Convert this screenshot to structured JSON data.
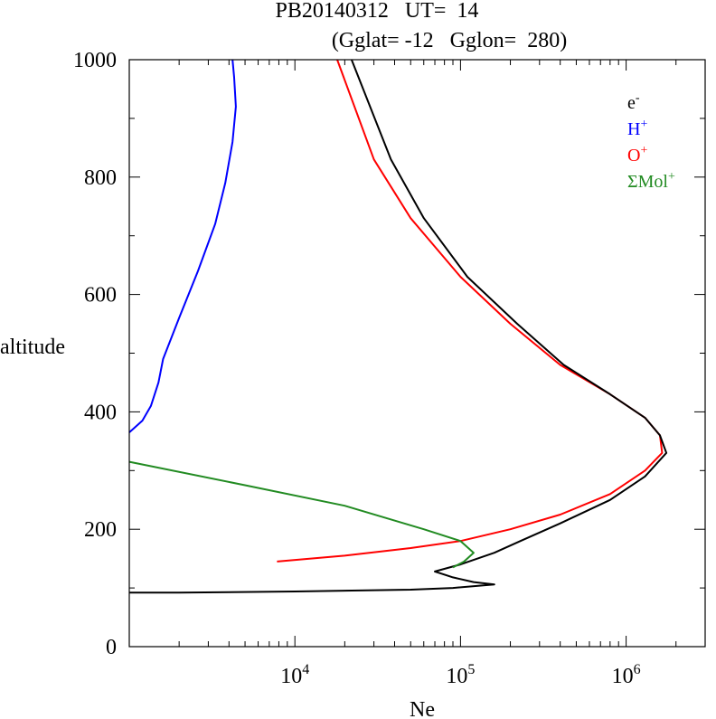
{
  "chart_data": {
    "type": "line",
    "title_line1": "PB20140312   UT=  14",
    "title_line2": "(Gglat= -12   Gglon=  280)",
    "xlabel": "Ne",
    "ylabel": "altitude",
    "xscale": "log",
    "xlim": [
      1000,
      3000000
    ],
    "ylim": [
      0,
      1000
    ],
    "yticks": [
      0,
      200,
      400,
      600,
      800,
      1000
    ],
    "xticks": [
      {
        "value": 10000,
        "base": "10",
        "exp": "4"
      },
      {
        "value": 100000,
        "base": "10",
        "exp": "5"
      },
      {
        "value": 1000000,
        "base": "10",
        "exp": "6"
      }
    ],
    "legend": {
      "placement": "top-right",
      "entries": [
        {
          "key": "e",
          "base": "e",
          "sup": "-",
          "color": "#000000"
        },
        {
          "key": "H",
          "base": "H",
          "sup": "+",
          "color": "#0000ff"
        },
        {
          "key": "O",
          "base": "O",
          "sup": "+",
          "color": "#ff0000"
        },
        {
          "key": "Mol",
          "base": "ΣMol",
          "sup": "+",
          "color": "#228b22"
        }
      ]
    },
    "series": [
      {
        "name": "O+",
        "color": "#ff0000",
        "points": [
          [
            7800,
            145
          ],
          [
            20000,
            155
          ],
          [
            50000,
            168
          ],
          [
            100000,
            180
          ],
          [
            200000,
            200
          ],
          [
            400000,
            225
          ],
          [
            800000,
            260
          ],
          [
            1300000,
            300
          ],
          [
            1650000,
            330
          ],
          [
            1600000,
            360
          ],
          [
            1300000,
            390
          ],
          [
            800000,
            430
          ],
          [
            400000,
            480
          ],
          [
            200000,
            550
          ],
          [
            100000,
            630
          ],
          [
            50000,
            730
          ],
          [
            30000,
            830
          ],
          [
            18000,
            1000
          ]
        ]
      },
      {
        "name": "e-",
        "color": "#000000",
        "points": [
          [
            1000,
            92
          ],
          [
            2000,
            92
          ],
          [
            10000,
            94
          ],
          [
            50000,
            97
          ],
          [
            90000,
            100
          ],
          [
            160000,
            106
          ],
          [
            120000,
            110
          ],
          [
            90000,
            118
          ],
          [
            70000,
            128
          ],
          [
            100000,
            140
          ],
          [
            160000,
            160
          ],
          [
            230000,
            180
          ],
          [
            400000,
            210
          ],
          [
            800000,
            250
          ],
          [
            1300000,
            290
          ],
          [
            1750000,
            330
          ],
          [
            1600000,
            360
          ],
          [
            1300000,
            390
          ],
          [
            800000,
            430
          ],
          [
            420000,
            480
          ],
          [
            220000,
            550
          ],
          [
            110000,
            630
          ],
          [
            60000,
            730
          ],
          [
            38000,
            830
          ],
          [
            22000,
            1000
          ]
        ]
      },
      {
        "name": "H+",
        "color": "#0000ff",
        "points": [
          [
            1000,
            365
          ],
          [
            1200,
            385
          ],
          [
            1350,
            410
          ],
          [
            1500,
            450
          ],
          [
            1600,
            490
          ],
          [
            2000,
            560
          ],
          [
            2600,
            640
          ],
          [
            3300,
            720
          ],
          [
            3800,
            790
          ],
          [
            4200,
            860
          ],
          [
            4400,
            920
          ],
          [
            4300,
            970
          ],
          [
            4200,
            1000
          ]
        ]
      },
      {
        "name": "ΣMol+",
        "color": "#228b22",
        "points": [
          [
            1000,
            315
          ],
          [
            5000,
            275
          ],
          [
            20000,
            240
          ],
          [
            60000,
            200
          ],
          [
            100000,
            180
          ],
          [
            120000,
            160
          ],
          [
            105000,
            145
          ],
          [
            90000,
            135
          ]
        ]
      }
    ]
  }
}
